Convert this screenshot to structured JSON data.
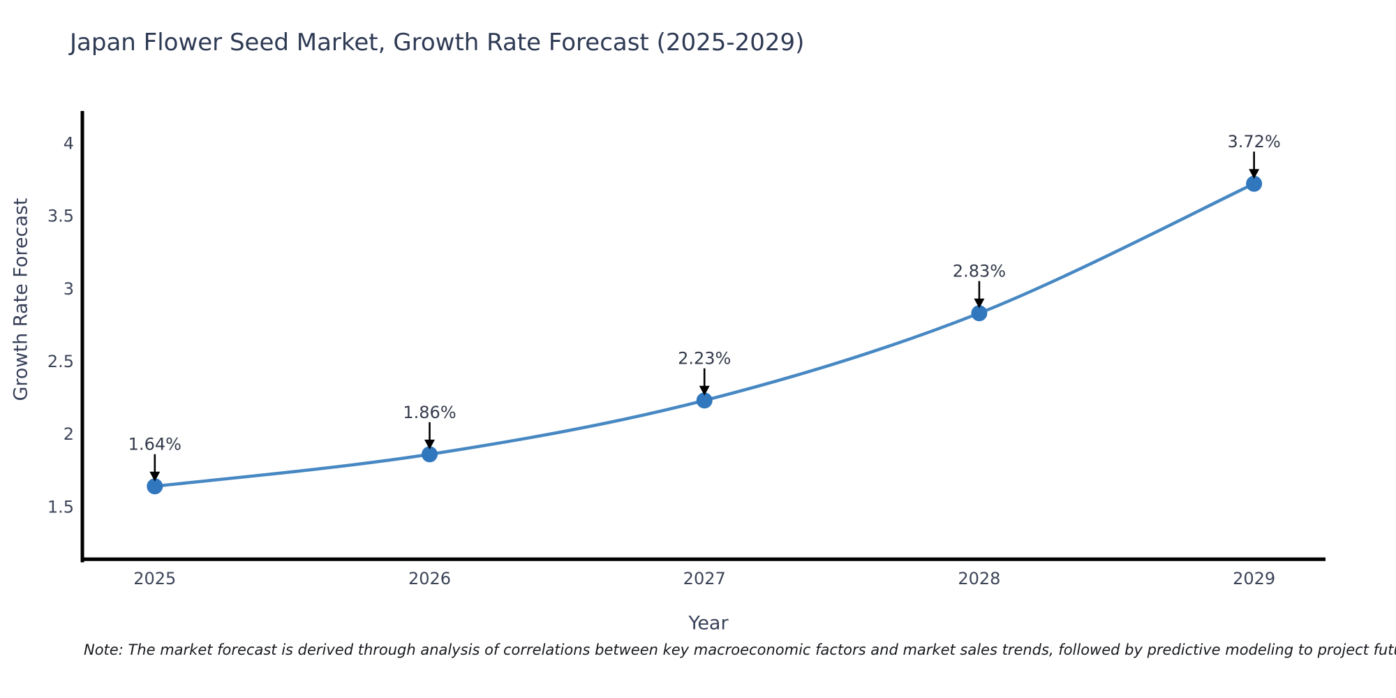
{
  "chart_data": {
    "type": "line",
    "title": "Japan Flower Seed Market, Growth Rate Forecast (2025-2029)",
    "xlabel": "Year",
    "ylabel": "Growth Rate Forecast",
    "note": "Note: The market forecast is derived through analysis of correlations between key macroeconomic factors and market sales trends, followed by predictive modeling to project future sales",
    "categories": [
      "2025",
      "2026",
      "2027",
      "2028",
      "2029"
    ],
    "values": [
      1.64,
      1.86,
      2.23,
      2.83,
      3.72
    ],
    "point_labels": [
      "1.64%",
      "1.86%",
      "2.23%",
      "2.83%",
      "3.72%"
    ],
    "yticks": [
      {
        "value": 1.5,
        "label": "1.5"
      },
      {
        "value": 2,
        "label": "2"
      },
      {
        "value": 2.5,
        "label": "2.5"
      },
      {
        "value": 3,
        "label": "3"
      },
      {
        "value": 3.5,
        "label": "3.5"
      },
      {
        "value": 4,
        "label": "4"
      }
    ],
    "ylim": [
      1.13,
      4.22
    ],
    "xlim": [
      2024.73,
      2029.26
    ],
    "grid": false,
    "legend": null,
    "line_smoothing": "spline",
    "colors": {
      "line": "#4788c3",
      "marker": "#3077bd",
      "axis": "#000000",
      "tick_text": "#3c4458",
      "annotation_text": "#333a4a",
      "annotation_arrow": "#000000",
      "title_text": "#2e3a54",
      "background": "#ffffff"
    }
  }
}
